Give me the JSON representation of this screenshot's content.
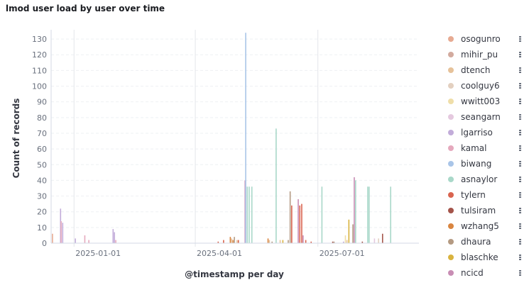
{
  "title": "lmod user load by user over time",
  "legend": [
    {
      "label": "osogunro",
      "color": "#E7AA92"
    },
    {
      "label": "mihir_pu",
      "color": "#D2AA9E"
    },
    {
      "label": "dtench",
      "color": "#E6C29A"
    },
    {
      "label": "coolguy6",
      "color": "#E3D0C0"
    },
    {
      "label": "wwitt003",
      "color": "#EFDEA9"
    },
    {
      "label": "seangarn",
      "color": "#E5C9DF"
    },
    {
      "label": "lgarriso",
      "color": "#C2ACD9"
    },
    {
      "label": "kamal",
      "color": "#E5A9BD"
    },
    {
      "label": "biwang",
      "color": "#A9C5E8"
    },
    {
      "label": "asnaylor",
      "color": "#A9D8C9"
    },
    {
      "label": "tylern",
      "color": "#D9644F"
    },
    {
      "label": "tulsiram",
      "color": "#A4544A"
    },
    {
      "label": "wzhang5",
      "color": "#D98540"
    },
    {
      "label": "dhaura",
      "color": "#B49A82"
    },
    {
      "label": "blaschke",
      "color": "#D9B33E"
    },
    {
      "label": "ncicd",
      "color": "#C88DB4"
    }
  ],
  "chart_data": {
    "type": "bar",
    "title": "lmod user load by user over time",
    "xlabel": "@timestamp per day",
    "ylabel": "Count of records",
    "ylim": [
      0,
      135
    ],
    "yticks": [
      0,
      10,
      20,
      30,
      40,
      50,
      60,
      70,
      80,
      90,
      100,
      110,
      120,
      130
    ],
    "xlim": [
      "2024-12-15",
      "2025-09-14"
    ],
    "xticks": [
      {
        "date": "2025-01-01",
        "label": "2025-01-01"
      },
      {
        "date": "2025-04-01",
        "label": "2025-04-01"
      },
      {
        "date": "2025-07-01",
        "label": "2025-07-01"
      }
    ],
    "grid": true,
    "legend_position": "right",
    "bars": [
      {
        "date": "2024-12-16",
        "series": "osogunro",
        "value": 6
      },
      {
        "date": "2024-12-22",
        "series": "lgarriso",
        "value": 22
      },
      {
        "date": "2024-12-23",
        "series": "kamal",
        "value": 14
      },
      {
        "date": "2024-12-23",
        "series": "lgarriso",
        "value": 13
      },
      {
        "date": "2025-01-02",
        "series": "lgarriso",
        "value": 3
      },
      {
        "date": "2025-01-09",
        "series": "kamal",
        "value": 5
      },
      {
        "date": "2025-01-12",
        "series": "kamal",
        "value": 2
      },
      {
        "date": "2025-01-30",
        "series": "lgarriso",
        "value": 9
      },
      {
        "date": "2025-01-31",
        "series": "lgarriso",
        "value": 7
      },
      {
        "date": "2025-02-01",
        "series": "kamal",
        "value": 2
      },
      {
        "date": "2025-04-18",
        "series": "tylern",
        "value": 1
      },
      {
        "date": "2025-04-22",
        "series": "tylern",
        "value": 2
      },
      {
        "date": "2025-04-27",
        "series": "wzhang5",
        "value": 4
      },
      {
        "date": "2025-04-28",
        "series": "dtench",
        "value": 3
      },
      {
        "date": "2025-04-29",
        "series": "wzhang5",
        "value": 2
      },
      {
        "date": "2025-04-30",
        "series": "dhaura",
        "value": 4
      },
      {
        "date": "2025-05-02",
        "series": "dtench",
        "value": 2
      },
      {
        "date": "2025-05-03",
        "series": "tylern",
        "value": 2
      },
      {
        "date": "2025-05-08",
        "series": "ncicd",
        "value": 40
      },
      {
        "date": "2025-05-09",
        "series": "biwang",
        "value": 134
      },
      {
        "date": "2025-05-09",
        "series": "asnaylor",
        "value": 36
      },
      {
        "date": "2025-05-11",
        "series": "asnaylor",
        "value": 36
      },
      {
        "date": "2025-05-13",
        "series": "asnaylor",
        "value": 36
      },
      {
        "date": "2025-05-25",
        "series": "wzhang5",
        "value": 3
      },
      {
        "date": "2025-05-26",
        "series": "dtench",
        "value": 2
      },
      {
        "date": "2025-05-28",
        "series": "dhaura",
        "value": 1
      },
      {
        "date": "2025-05-31",
        "series": "asnaylor",
        "value": 73
      },
      {
        "date": "2025-06-03",
        "series": "dtench",
        "value": 2
      },
      {
        "date": "2025-06-05",
        "series": "blaschke",
        "value": 2
      },
      {
        "date": "2025-06-09",
        "series": "dhaura",
        "value": 2
      },
      {
        "date": "2025-06-11",
        "series": "dhaura",
        "value": 33
      },
      {
        "date": "2025-06-11",
        "series": "tylern",
        "value": 24
      },
      {
        "date": "2025-06-17",
        "series": "ncicd",
        "value": 28
      },
      {
        "date": "2025-06-17",
        "series": "tylern",
        "value": 24
      },
      {
        "date": "2025-06-19",
        "series": "tylern",
        "value": 25
      },
      {
        "date": "2025-06-20",
        "series": "ncicd",
        "value": 5
      },
      {
        "date": "2025-06-22",
        "series": "tylern",
        "value": 2
      },
      {
        "date": "2025-06-26",
        "series": "tylern",
        "value": 1
      },
      {
        "date": "2025-07-04",
        "series": "asnaylor",
        "value": 36
      },
      {
        "date": "2025-07-12",
        "series": "tulsiram",
        "value": 1
      },
      {
        "date": "2025-07-13",
        "series": "dhaura",
        "value": 1
      },
      {
        "date": "2025-07-20",
        "series": "lgarriso",
        "value": 1
      },
      {
        "date": "2025-07-22",
        "series": "wwitt003",
        "value": 5
      },
      {
        "date": "2025-07-22",
        "series": "dtench",
        "value": 2
      },
      {
        "date": "2025-07-24",
        "series": "blaschke",
        "value": 15
      },
      {
        "date": "2025-07-27",
        "series": "dhaura",
        "value": 12
      },
      {
        "date": "2025-07-28",
        "series": "ncicd",
        "value": 42
      },
      {
        "date": "2025-07-29",
        "series": "asnaylor",
        "value": 40
      },
      {
        "date": "2025-08-03",
        "series": "tulsiram",
        "value": 1
      },
      {
        "date": "2025-08-07",
        "series": "asnaylor",
        "value": 36
      },
      {
        "date": "2025-08-08",
        "series": "asnaylor",
        "value": 36
      },
      {
        "date": "2025-08-12",
        "series": "seangarn",
        "value": 3
      },
      {
        "date": "2025-08-15",
        "series": "coolguy6",
        "value": 3
      },
      {
        "date": "2025-08-18",
        "series": "tulsiram",
        "value": 6
      },
      {
        "date": "2025-08-24",
        "series": "asnaylor",
        "value": 36
      }
    ]
  }
}
